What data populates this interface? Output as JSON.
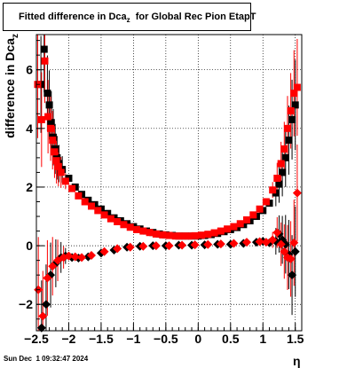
{
  "title": {
    "main": "Fitted difference in Dca",
    "sub": "z",
    "rest": "  for Global Rec Pion EtapT"
  },
  "ylabel": {
    "main": "difference in Dca",
    "sub": "z"
  },
  "xlabel": "η",
  "datestamp": "Sun Dec  1 09:32:47 2024",
  "colors": {
    "series_a": "#000000",
    "series_b": "#ff0000",
    "grid": "#000000"
  },
  "chart_data": {
    "type": "scatter",
    "xlim": [
      -2.5,
      1.6
    ],
    "ylim": [
      -2.9,
      7.2
    ],
    "grid": true,
    "x_ticks": [
      -2.5,
      -2,
      -1.5,
      -1,
      -0.5,
      0,
      0.5,
      1,
      1.5
    ],
    "x_tick_labels": [
      "−2.5",
      "−2",
      "−1.5",
      "−1",
      "−0.5",
      "0",
      "0.5",
      "1",
      "1.5"
    ],
    "y_ticks": [
      -2,
      0,
      2,
      4,
      6
    ],
    "y_tick_labels": [
      "−2",
      "0",
      "2",
      "4",
      "6"
    ],
    "series": [
      {
        "marker": "square",
        "color": "#000000",
        "x": [
          -2.43,
          -2.38,
          -2.33,
          -2.3,
          -2.27,
          -2.24,
          -2.21,
          -2.18,
          -2.15,
          -2.1,
          -2.0,
          -1.9,
          -1.8,
          -1.7,
          -1.6,
          -1.5,
          -1.4,
          -1.3,
          -1.2,
          -1.1,
          -1.0,
          -0.9,
          -0.8,
          -0.7,
          -0.6,
          -0.5,
          -0.4,
          -0.3,
          -0.2,
          -0.1,
          0.0,
          0.1,
          0.2,
          0.3,
          0.4,
          0.5,
          0.6,
          0.7,
          0.8,
          0.9,
          1.0,
          1.1,
          1.2,
          1.25,
          1.3,
          1.35,
          1.4,
          1.45,
          1.5
        ],
        "y": [
          5.5,
          6.7,
          5.2,
          4.8,
          4.2,
          3.7,
          3.3,
          3.0,
          2.8,
          2.6,
          2.3,
          2.0,
          1.75,
          1.55,
          1.4,
          1.25,
          1.1,
          0.95,
          0.85,
          0.75,
          0.65,
          0.57,
          0.5,
          0.45,
          0.4,
          0.37,
          0.35,
          0.33,
          0.33,
          0.33,
          0.33,
          0.35,
          0.38,
          0.42,
          0.48,
          0.55,
          0.62,
          0.72,
          0.85,
          1.0,
          1.2,
          1.45,
          1.8,
          2.1,
          2.5,
          3.0,
          3.6,
          4.3,
          4.8
        ]
      },
      {
        "marker": "square",
        "color": "#ff0000",
        "x": [
          -2.48,
          -2.42,
          -2.37,
          -2.32,
          -2.28,
          -2.25,
          -2.22,
          -2.19,
          -2.16,
          -2.12,
          -2.05,
          -1.95,
          -1.85,
          -1.75,
          -1.65,
          -1.55,
          -1.45,
          -1.35,
          -1.25,
          -1.15,
          -1.05,
          -0.95,
          -0.85,
          -0.75,
          -0.65,
          -0.55,
          -0.45,
          -0.35,
          -0.25,
          -0.15,
          -0.05,
          0.05,
          0.15,
          0.25,
          0.35,
          0.45,
          0.55,
          0.65,
          0.75,
          0.85,
          0.95,
          1.05,
          1.15,
          1.22,
          1.28,
          1.33,
          1.38,
          1.43,
          1.48,
          1.53
        ],
        "y": [
          5.5,
          4.3,
          6.3,
          4.4,
          4.0,
          3.6,
          3.2,
          2.9,
          2.7,
          2.5,
          2.2,
          1.95,
          1.7,
          1.5,
          1.35,
          1.2,
          1.05,
          0.92,
          0.82,
          0.72,
          0.63,
          0.55,
          0.5,
          0.45,
          0.4,
          0.37,
          0.35,
          0.33,
          0.33,
          0.33,
          0.34,
          0.36,
          0.39,
          0.44,
          0.5,
          0.57,
          0.65,
          0.75,
          0.88,
          1.05,
          1.25,
          1.5,
          1.9,
          2.3,
          2.8,
          3.3,
          4.0,
          4.6,
          5.2,
          5.4
        ]
      },
      {
        "marker": "diamond",
        "color": "#000000",
        "x": [
          -2.42,
          -2.35,
          -2.28,
          -2.2,
          -2.12,
          -2.05,
          -1.95,
          -1.85,
          -1.7,
          -1.5,
          -1.3,
          -1.1,
          -0.9,
          -0.7,
          -0.5,
          -0.3,
          -0.1,
          0.1,
          0.3,
          0.5,
          0.7,
          0.9,
          1.0,
          1.1,
          1.2,
          1.25,
          1.3,
          1.35,
          1.4,
          1.45,
          1.5
        ],
        "y": [
          -2.8,
          -2.0,
          -1.0,
          -0.6,
          -0.4,
          -0.35,
          -0.4,
          -0.42,
          -0.38,
          -0.25,
          -0.15,
          -0.05,
          -0.02,
          0.0,
          0.0,
          0.02,
          0.02,
          0.03,
          0.05,
          0.05,
          0.08,
          0.12,
          0.15,
          0.1,
          0.15,
          0.4,
          0.2,
          0.05,
          -0.3,
          -1.0,
          -0.2
        ]
      },
      {
        "marker": "diamond",
        "color": "#ff0000",
        "x": [
          -2.47,
          -2.4,
          -2.33,
          -2.25,
          -2.17,
          -2.08,
          -2.0,
          -1.9,
          -1.8,
          -1.65,
          -1.45,
          -1.25,
          -1.05,
          -0.85,
          -0.65,
          -0.45,
          -0.25,
          -0.05,
          0.15,
          0.35,
          0.55,
          0.75,
          0.95,
          1.05,
          1.15,
          1.22,
          1.28,
          1.33,
          1.38,
          1.43,
          1.48,
          1.53
        ],
        "y": [
          -1.5,
          -2.4,
          -1.1,
          -0.7,
          -0.5,
          -0.4,
          -0.35,
          -0.38,
          -0.4,
          -0.33,
          -0.2,
          -0.1,
          -0.05,
          -0.02,
          0.0,
          0.0,
          0.02,
          0.03,
          0.04,
          0.06,
          0.08,
          0.12,
          0.14,
          0.12,
          0.2,
          0.45,
          0.05,
          -0.2,
          -0.4,
          -0.45,
          0.1,
          1.8
        ]
      }
    ]
  }
}
